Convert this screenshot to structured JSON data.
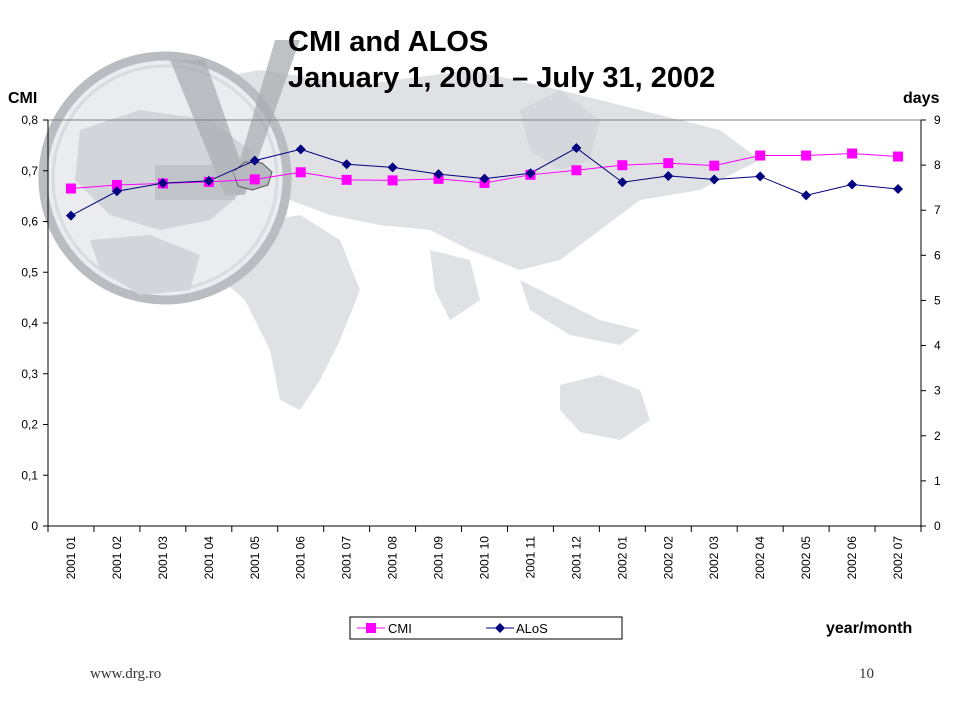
{
  "slide": {
    "title_line1": "CMI and ALOS",
    "title_line2": "January 1, 2001 – July 31, 2002",
    "website": "www.drg.ro",
    "page_number": "10"
  },
  "colors": {
    "cmi": "#ff00ff",
    "alos": "#000080",
    "map": "#dfe1e4",
    "map_dark": "#c4c7cc"
  },
  "chart_data": {
    "type": "line",
    "categories": [
      "2001 01",
      "2001 02",
      "2001 03",
      "2001 04",
      "2001 05",
      "2001 06",
      "2001 07",
      "2001 08",
      "2001 09",
      "2001 10",
      "2001 11",
      "2001 12",
      "2002 01",
      "2002 02",
      "2002 03",
      "2002 04",
      "2002 05",
      "2002 06",
      "2002 07"
    ],
    "series": [
      {
        "name": "CMI",
        "axis": "left",
        "marker": "square",
        "values": [
          0.665,
          0.672,
          0.675,
          0.678,
          0.683,
          0.697,
          0.682,
          0.681,
          0.684,
          0.676,
          0.692,
          0.701,
          0.711,
          0.715,
          0.71,
          0.73,
          0.73,
          0.734,
          0.728
        ]
      },
      {
        "name": "ALoS",
        "axis": "right",
        "marker": "diamond",
        "values": [
          6.88,
          7.42,
          7.6,
          7.65,
          8.1,
          8.35,
          8.02,
          7.95,
          7.8,
          7.7,
          7.82,
          8.38,
          7.62,
          7.76,
          7.68,
          7.75,
          7.33,
          7.57,
          7.47
        ]
      }
    ],
    "ylabel_left": "CMI",
    "ylabel_right": "days",
    "xlabel": "year/month",
    "ylim_left": [
      0,
      0.8
    ],
    "yticks_left": [
      "0",
      "0,1",
      "0,2",
      "0,3",
      "0,4",
      "0,5",
      "0,6",
      "0,7",
      "0,8"
    ],
    "ylim_right": [
      0,
      9
    ],
    "yticks_right": [
      "0",
      "1",
      "2",
      "3",
      "4",
      "5",
      "6",
      "7",
      "8",
      "9"
    ],
    "grid": false,
    "legend_placement": "bottom-center"
  }
}
